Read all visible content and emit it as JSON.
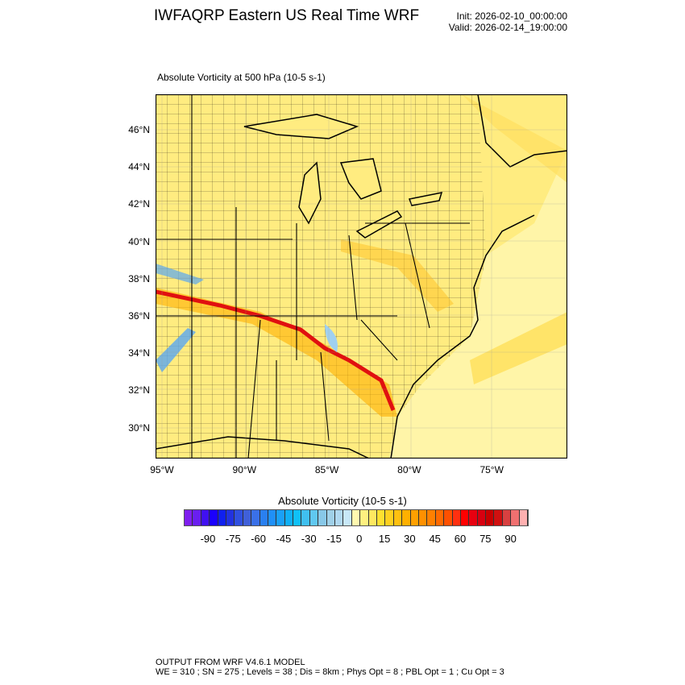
{
  "header": {
    "title": "IWFAQRP Eastern US Real Time WRF",
    "init": "Init: 2026-02-10_00:00:00",
    "valid": "Valid: 2026-02-14_19:00:00"
  },
  "plot": {
    "subtitle": "Absolute Vorticity at 500 hPa   (10-5 s-1)",
    "lat_ticks": [
      "46°N",
      "44°N",
      "42°N",
      "40°N",
      "38°N",
      "36°N",
      "34°N",
      "32°N",
      "30°N"
    ],
    "lon_ticks": [
      "95°W",
      "90°W",
      "85°W",
      "80°W",
      "75°W"
    ]
  },
  "colorbar": {
    "title": "Absolute Vorticity  (10-5 s-1)",
    "labels": [
      "-90",
      "-75",
      "-60",
      "-45",
      "-30",
      "-15",
      "0",
      "15",
      "30",
      "45",
      "60",
      "75",
      "90"
    ],
    "colors": [
      "#7f1fef",
      "#6a1ff0",
      "#4010f0",
      "#1a00ff",
      "#1020ef",
      "#2232e0",
      "#3050e0",
      "#4060d8",
      "#3a70e8",
      "#2a80f0",
      "#2090f8",
      "#1aa0f8",
      "#10b0f8",
      "#10c0f8",
      "#40c0f0",
      "#60c8f0",
      "#88c8e8",
      "#a0d0e8",
      "#b0d8f0",
      "#c8e8f8",
      "#fff8b0",
      "#fff080",
      "#ffe860",
      "#ffe030",
      "#ffd020",
      "#ffc010",
      "#ffb000",
      "#ffa000",
      "#ff9000",
      "#ff8000",
      "#ff6a00",
      "#ff5000",
      "#ff3010",
      "#ff0000",
      "#e80010",
      "#d80010",
      "#c80000",
      "#d01010",
      "#d84040",
      "#f07070",
      "#ffb0b0"
    ]
  },
  "footer": {
    "line1": "OUTPUT FROM WRF V4.6.1 MODEL",
    "line2": "WE = 310 ; SN = 275 ; Levels = 38 ; Dis = 8km ; Phys Opt = 8 ; PBL Opt = 1 ; Cu Opt = 3"
  }
}
